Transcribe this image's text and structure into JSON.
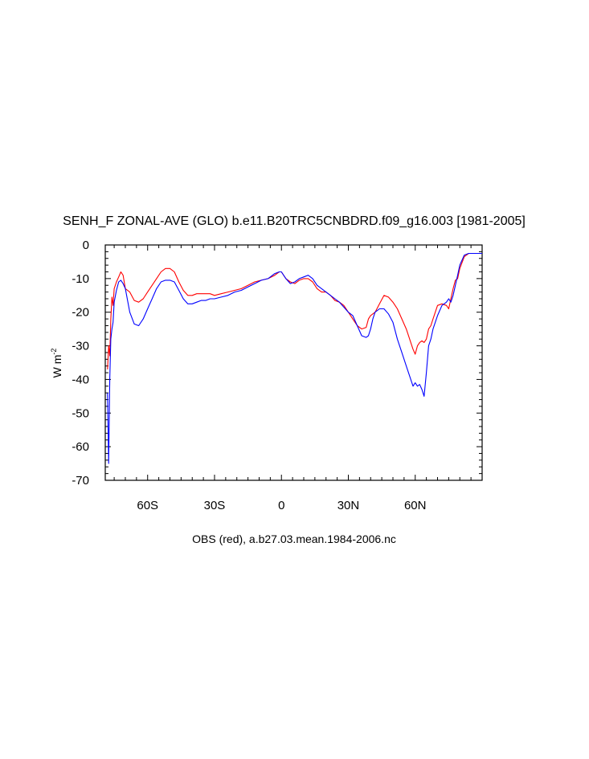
{
  "chart_data": {
    "type": "line",
    "title": "SENH_F ZONAL-AVE (GLO) b.e11.B20TRC5CNBDRD.f09_g16.003 [1981-2005]",
    "xlabel": "OBS (red), a.b27.03.mean.1984-2006.nc",
    "ylabel_base": "W m",
    "ylabel_sup": "-2",
    "xlim": [
      -79,
      90
    ],
    "ylim": [
      -70,
      0
    ],
    "x_ticks": [
      {
        "value": -60,
        "label": "60S"
      },
      {
        "value": -30,
        "label": "30S"
      },
      {
        "value": 0,
        "label": "0"
      },
      {
        "value": 30,
        "label": "30N"
      },
      {
        "value": 60,
        "label": "60N"
      }
    ],
    "y_ticks": [
      0,
      -10,
      -20,
      -30,
      -40,
      -50,
      -60,
      -70
    ],
    "series": [
      {
        "color": "#ff0000",
        "x": [
          -78,
          -77.5,
          -77,
          -76.5,
          -76,
          -75.5,
          -75,
          -74,
          -73,
          -72,
          -71,
          -70,
          -68,
          -66,
          -64,
          -62,
          -60,
          -58,
          -56,
          -54,
          -52,
          -50,
          -48,
          -46,
          -44,
          -42,
          -40,
          -38,
          -36,
          -34,
          -32,
          -30,
          -27,
          -24,
          -21,
          -18,
          -15,
          -12,
          -9,
          -6,
          -3,
          -1,
          0,
          2,
          4,
          6,
          8,
          10,
          12,
          14,
          16,
          18,
          20,
          22,
          24,
          26,
          28,
          30,
          32,
          34,
          36,
          38,
          39,
          40,
          42,
          44,
          46,
          48,
          50,
          52,
          54,
          56,
          58,
          59,
          60,
          61,
          62,
          63,
          64,
          65,
          66,
          67,
          68,
          69,
          70,
          72,
          74,
          75,
          76,
          77,
          78,
          79,
          80,
          82,
          84,
          86,
          88,
          90
        ],
        "y": [
          -37,
          -30,
          -33,
          -22,
          -15.5,
          -18,
          -13,
          -11,
          -9.5,
          -8,
          -9,
          -13,
          -14,
          -16.5,
          -17,
          -16,
          -14,
          -12,
          -10,
          -8,
          -7,
          -7,
          -8,
          -11,
          -13.5,
          -15,
          -15,
          -14.5,
          -14.5,
          -14.5,
          -14.5,
          -15,
          -14.5,
          -14,
          -13.5,
          -13,
          -12,
          -11,
          -10.5,
          -10,
          -9,
          -8,
          -8,
          -10,
          -11,
          -11.5,
          -10.5,
          -10,
          -10,
          -11,
          -13,
          -14,
          -14,
          -15,
          -16.5,
          -17,
          -18,
          -20,
          -22,
          -24,
          -25,
          -24.5,
          -22,
          -21,
          -20,
          -17.5,
          -15,
          -15.5,
          -17,
          -19,
          -22,
          -25,
          -29,
          -31,
          -32.5,
          -30,
          -29,
          -28.5,
          -29,
          -28,
          -25,
          -24,
          -22,
          -20,
          -18,
          -17.5,
          -18,
          -19,
          -16,
          -13,
          -10.5,
          -10,
          -7,
          -3.5,
          -2.5,
          -2.5,
          -2.5,
          -2.5
        ]
      },
      {
        "color": "#0000ff",
        "x": [
          -78,
          -77.5,
          -77,
          -76.5,
          -76,
          -75.5,
          -75,
          -74,
          -73,
          -72,
          -71,
          -70,
          -68,
          -66,
          -64,
          -62,
          -60,
          -58,
          -56,
          -54,
          -52,
          -50,
          -48,
          -46,
          -44,
          -42,
          -40,
          -38,
          -36,
          -34,
          -32,
          -30,
          -27,
          -24,
          -21,
          -18,
          -15,
          -12,
          -9,
          -6,
          -3,
          -1,
          0,
          2,
          4,
          6,
          8,
          10,
          12,
          14,
          16,
          18,
          20,
          22,
          24,
          26,
          28,
          30,
          32,
          34,
          36,
          38,
          39,
          40,
          41,
          42,
          44,
          46,
          48,
          50,
          52,
          54,
          56,
          58,
          59,
          60,
          61,
          62,
          63,
          64,
          65,
          66,
          67,
          68,
          70,
          72,
          74,
          75,
          76,
          77,
          78,
          79,
          80,
          82,
          84,
          86,
          88,
          90
        ],
        "y": [
          -44,
          -65,
          -40,
          -28,
          -25,
          -23,
          -17,
          -13.5,
          -11,
          -10.5,
          -11.5,
          -13,
          -20,
          -23.5,
          -24,
          -22,
          -19,
          -16,
          -13,
          -11,
          -10.5,
          -10.5,
          -11,
          -13.5,
          -16,
          -17.5,
          -17.5,
          -17,
          -16.5,
          -16.5,
          -16,
          -16,
          -15.5,
          -15,
          -14,
          -13.5,
          -12.5,
          -11.5,
          -10.5,
          -10,
          -8.5,
          -8,
          -8,
          -10,
          -11.5,
          -11,
          -10,
          -9.5,
          -9,
          -10,
          -12,
          -13,
          -14,
          -15,
          -16,
          -17,
          -18.5,
          -20,
          -21,
          -24,
          -27,
          -27.5,
          -27,
          -25,
          -22,
          -20,
          -19,
          -19,
          -20.5,
          -23,
          -28,
          -32,
          -36,
          -40,
          -42,
          -41,
          -42,
          -41.5,
          -43,
          -45,
          -38,
          -30,
          -28,
          -25,
          -21,
          -18,
          -17,
          -16,
          -17,
          -15,
          -12,
          -9,
          -6,
          -3,
          -2.5,
          -2.5,
          -2.5,
          -2.5
        ]
      }
    ]
  }
}
